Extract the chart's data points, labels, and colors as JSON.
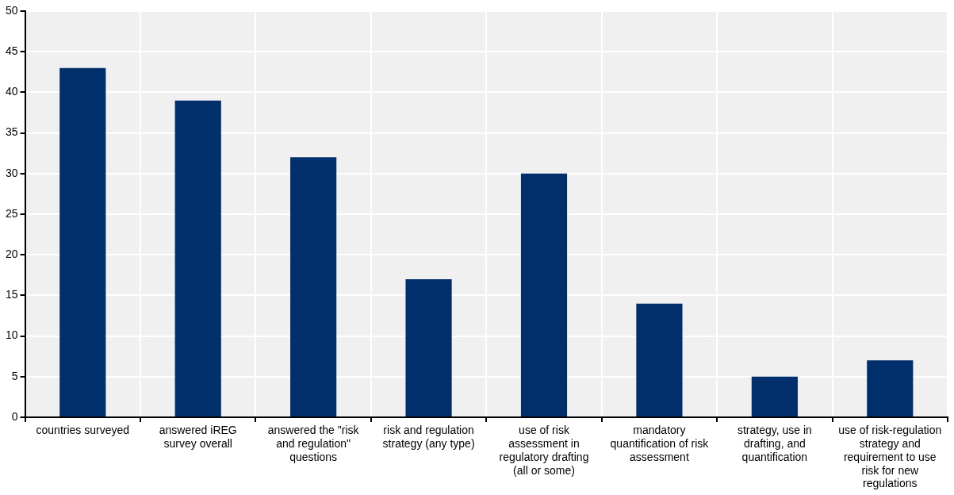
{
  "chart_data": {
    "type": "bar",
    "categories": [
      "countries surveyed",
      "answered iREG survey overall",
      "answered the \"risk and regulation\" questions",
      "risk and regulation strategy (any type)",
      "use of risk assessment in regulatory drafting (all or some)",
      "mandatory quantification of risk assessment",
      "strategy, use in drafting, and quantification",
      "use of risk-regulation strategy and requirement to use risk for new regulations"
    ],
    "values": [
      43,
      39,
      32,
      17,
      30,
      14,
      5,
      7
    ],
    "color": "#002f6c",
    "ylim": [
      0,
      50
    ],
    "yticks": [
      0,
      5,
      10,
      15,
      20,
      25,
      30,
      35,
      40,
      45,
      50
    ],
    "grid": true
  }
}
